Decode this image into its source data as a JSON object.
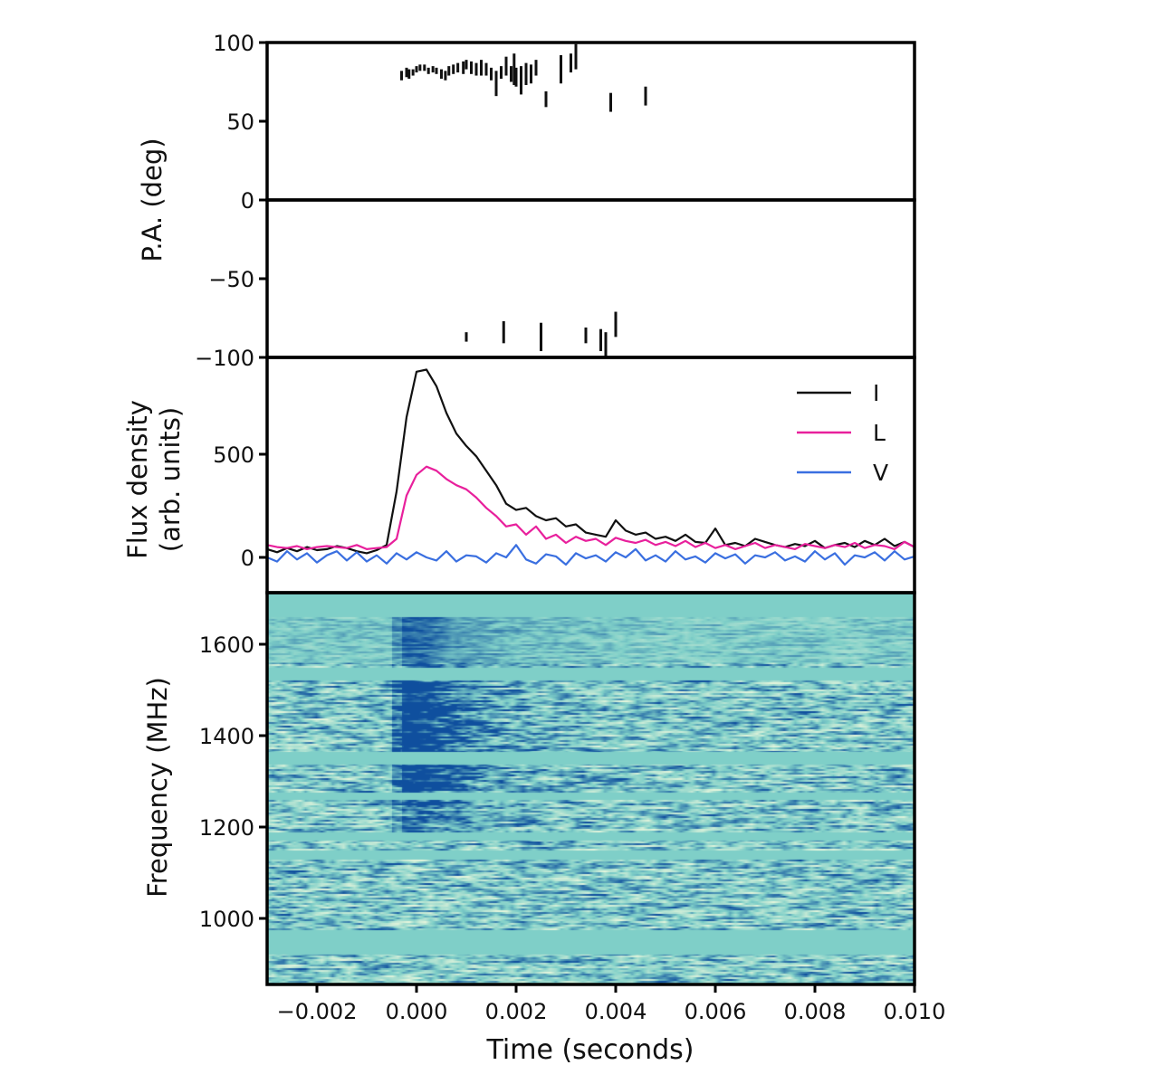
{
  "chart_data": [
    {
      "type": "scatter",
      "panel": "polarization position angle",
      "ylabel": "P.A. (deg)",
      "ylim": [
        -100,
        100
      ],
      "xlim": [
        -0.003,
        0.01
      ],
      "yticks": [
        100,
        50,
        0,
        -50,
        -100
      ],
      "ytick_labels": [
        "100",
        "50",
        "0",
        "−50",
        "−100"
      ],
      "marker": "vertical error bars",
      "color": "#111111",
      "points": [
        {
          "t": -0.0003,
          "pa": 79,
          "err": 3
        },
        {
          "t": -0.0002,
          "pa": 81,
          "err": 3
        },
        {
          "t": -0.00015,
          "pa": 80,
          "err": 3
        },
        {
          "t": -7e-05,
          "pa": 81,
          "err": 2
        },
        {
          "t": 0.0,
          "pa": 83,
          "err": 2
        },
        {
          "t": 7e-05,
          "pa": 84,
          "err": 2
        },
        {
          "t": 0.00016,
          "pa": 84,
          "err": 2
        },
        {
          "t": 0.00024,
          "pa": 82,
          "err": 2
        },
        {
          "t": 0.00033,
          "pa": 83,
          "err": 2
        },
        {
          "t": 0.0004,
          "pa": 82,
          "err": 2
        },
        {
          "t": 0.0005,
          "pa": 80,
          "err": 3
        },
        {
          "t": 0.00058,
          "pa": 79,
          "err": 3
        },
        {
          "t": 0.00065,
          "pa": 82,
          "err": 3
        },
        {
          "t": 0.00074,
          "pa": 83,
          "err": 3
        },
        {
          "t": 0.00083,
          "pa": 84,
          "err": 3
        },
        {
          "t": 0.00094,
          "pa": 84,
          "err": 4
        },
        {
          "t": 0.001,
          "pa": 86,
          "err": 3
        },
        {
          "t": 0.0011,
          "pa": 84,
          "err": 4
        },
        {
          "t": 0.0012,
          "pa": 83,
          "err": 4
        },
        {
          "t": 0.0013,
          "pa": 84,
          "err": 5
        },
        {
          "t": 0.0014,
          "pa": 83,
          "err": 4
        },
        {
          "t": 0.0015,
          "pa": 80,
          "err": 4
        },
        {
          "t": 0.0016,
          "pa": 74,
          "err": 8
        },
        {
          "t": 0.0017,
          "pa": 81,
          "err": 4
        },
        {
          "t": 0.0018,
          "pa": 85,
          "err": 6
        },
        {
          "t": 0.0019,
          "pa": 80,
          "err": 5
        },
        {
          "t": 0.00196,
          "pa": 83,
          "err": 10
        },
        {
          "t": 0.002,
          "pa": 78,
          "err": 6
        },
        {
          "t": 0.0021,
          "pa": 76,
          "err": 9
        },
        {
          "t": 0.0022,
          "pa": 80,
          "err": 7
        },
        {
          "t": 0.0023,
          "pa": 80,
          "err": 6
        },
        {
          "t": 0.0024,
          "pa": 84,
          "err": 5
        },
        {
          "t": 0.0026,
          "pa": 64,
          "err": 5
        },
        {
          "t": 0.0029,
          "pa": 83,
          "err": 9
        },
        {
          "t": 0.0031,
          "pa": 87,
          "err": 6
        },
        {
          "t": 0.0032,
          "pa": 91,
          "err": 8
        },
        {
          "t": 0.0039,
          "pa": 62,
          "err": 6
        },
        {
          "t": 0.0046,
          "pa": 66,
          "err": 6
        },
        {
          "t": 0.001,
          "pa": -87,
          "err": 3
        },
        {
          "t": 0.00175,
          "pa": -84,
          "err": 7
        },
        {
          "t": 0.0025,
          "pa": -87,
          "err": 9
        },
        {
          "t": 0.0034,
          "pa": -86,
          "err": 5
        },
        {
          "t": 0.0037,
          "pa": -89,
          "err": 7
        },
        {
          "t": 0.0038,
          "pa": -92,
          "err": 8
        },
        {
          "t": 0.004,
          "pa": -79,
          "err": 8
        }
      ]
    },
    {
      "type": "line",
      "panel": "flux density profile",
      "ylabel_lines": [
        "Flux density",
        "(arb. units)"
      ],
      "ylim": [
        -75,
        1000
      ],
      "yticks": [
        0,
        500
      ],
      "ytick_labels": [
        "0",
        "500"
      ],
      "x_start": -0.003,
      "x_step": 0.0002,
      "legend_position": "top-right",
      "series": [
        {
          "name": "I",
          "color": "#111111",
          "values": [
            40,
            25,
            45,
            30,
            50,
            35,
            40,
            55,
            45,
            30,
            20,
            35,
            60,
            320,
            680,
            900,
            910,
            830,
            700,
            600,
            540,
            490,
            420,
            350,
            260,
            230,
            240,
            200,
            180,
            190,
            150,
            160,
            120,
            110,
            100,
            180,
            130,
            110,
            120,
            90,
            100,
            80,
            110,
            75,
            70,
            140,
            60,
            70,
            55,
            90,
            75,
            60,
            50,
            65,
            55,
            80,
            45,
            60,
            70,
            50,
            80,
            60,
            90,
            55,
            75,
            50
          ]
        },
        {
          "name": "L",
          "color": "#e8209c",
          "values": [
            60,
            50,
            45,
            55,
            40,
            50,
            55,
            50,
            45,
            60,
            40,
            45,
            50,
            90,
            300,
            400,
            440,
            420,
            380,
            350,
            330,
            290,
            240,
            200,
            150,
            160,
            110,
            150,
            90,
            110,
            70,
            100,
            80,
            90,
            60,
            95,
            80,
            70,
            85,
            60,
            75,
            55,
            80,
            50,
            70,
            45,
            60,
            40,
            55,
            70,
            45,
            60,
            50,
            40,
            65,
            55,
            45,
            60,
            50,
            70,
            45,
            60,
            55,
            40,
            75,
            50
          ]
        },
        {
          "name": "V",
          "color": "#3a6fe0",
          "values": [
            0,
            -20,
            30,
            -10,
            20,
            -25,
            10,
            30,
            -15,
            25,
            -20,
            10,
            -30,
            20,
            -10,
            25,
            0,
            -15,
            30,
            -20,
            10,
            5,
            -25,
            20,
            0,
            60,
            -10,
            -30,
            15,
            5,
            -35,
            20,
            -5,
            10,
            -20,
            25,
            0,
            40,
            -15,
            10,
            -20,
            30,
            -10,
            5,
            -25,
            20,
            -5,
            15,
            -30,
            10,
            0,
            25,
            -15,
            5,
            -20,
            30,
            -10,
            20,
            -35,
            10,
            0,
            25,
            -15,
            30,
            -10,
            5
          ]
        }
      ]
    },
    {
      "type": "heatmap",
      "panel": "dynamic spectrum",
      "ylabel": "Frequency (MHz)",
      "ylim": [
        855,
        1713
      ],
      "yticks": [
        1000,
        1200,
        1400,
        1600
      ],
      "ytick_labels": [
        "1000",
        "1200",
        "1400",
        "1600"
      ],
      "colormap": {
        "zero": "#7fcfc8",
        "positive": "#0f4f9e",
        "negative": "#e4f5dc"
      },
      "masked_bands_mhz": [
        [
          1660,
          1713
        ],
        [
          1521,
          1549
        ],
        [
          1337,
          1366
        ],
        [
          1261,
          1277
        ],
        [
          1172,
          1188
        ],
        [
          1129,
          1149
        ],
        [
          921,
          974
        ]
      ],
      "burst": {
        "t_start": -0.0005,
        "t_end": 0.0025,
        "f_low": 1180,
        "f_high": 1660
      }
    }
  ],
  "xaxis": {
    "label": "Time (seconds)",
    "xlim": [
      -0.003,
      0.01
    ],
    "ticks": [
      -0.002,
      0.0,
      0.002,
      0.004,
      0.006,
      0.008,
      0.01
    ],
    "tick_labels": [
      "−0.002",
      "0.000",
      "0.002",
      "0.004",
      "0.006",
      "0.008",
      "0.010"
    ]
  }
}
